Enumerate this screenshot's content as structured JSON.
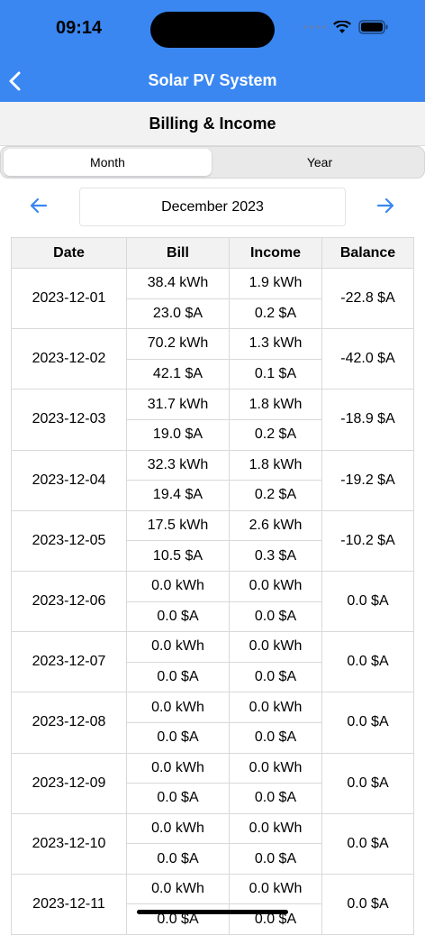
{
  "status": {
    "time": "09:14"
  },
  "header": {
    "title": "Solar PV System"
  },
  "subheader": {
    "title": "Billing & Income"
  },
  "tabs": [
    {
      "label": "Month",
      "selected": true
    },
    {
      "label": "Year",
      "selected": false
    }
  ],
  "period": {
    "label": "December 2023"
  },
  "table": {
    "columns": [
      "Date",
      "Bill",
      "Income",
      "Balance"
    ],
    "rows": [
      {
        "date": "2023-12-01",
        "bill_kwh": "38.4 kWh",
        "bill_cost": "23.0 $A",
        "income_kwh": "1.9 kWh",
        "income_cost": "0.2 $A",
        "balance": "-22.8 $A"
      },
      {
        "date": "2023-12-02",
        "bill_kwh": "70.2 kWh",
        "bill_cost": "42.1 $A",
        "income_kwh": "1.3 kWh",
        "income_cost": "0.1 $A",
        "balance": "-42.0 $A"
      },
      {
        "date": "2023-12-03",
        "bill_kwh": "31.7 kWh",
        "bill_cost": "19.0 $A",
        "income_kwh": "1.8 kWh",
        "income_cost": "0.2 $A",
        "balance": "-18.9 $A"
      },
      {
        "date": "2023-12-04",
        "bill_kwh": "32.3 kWh",
        "bill_cost": "19.4 $A",
        "income_kwh": "1.8 kWh",
        "income_cost": "0.2 $A",
        "balance": "-19.2 $A"
      },
      {
        "date": "2023-12-05",
        "bill_kwh": "17.5 kWh",
        "bill_cost": "10.5 $A",
        "income_kwh": "2.6 kWh",
        "income_cost": "0.3 $A",
        "balance": "-10.2 $A"
      },
      {
        "date": "2023-12-06",
        "bill_kwh": "0.0 kWh",
        "bill_cost": "0.0 $A",
        "income_kwh": "0.0 kWh",
        "income_cost": "0.0 $A",
        "balance": "0.0 $A"
      },
      {
        "date": "2023-12-07",
        "bill_kwh": "0.0 kWh",
        "bill_cost": "0.0 $A",
        "income_kwh": "0.0 kWh",
        "income_cost": "0.0 $A",
        "balance": "0.0 $A"
      },
      {
        "date": "2023-12-08",
        "bill_kwh": "0.0 kWh",
        "bill_cost": "0.0 $A",
        "income_kwh": "0.0 kWh",
        "income_cost": "0.0 $A",
        "balance": "0.0 $A"
      },
      {
        "date": "2023-12-09",
        "bill_kwh": "0.0 kWh",
        "bill_cost": "0.0 $A",
        "income_kwh": "0.0 kWh",
        "income_cost": "0.0 $A",
        "balance": "0.0 $A"
      },
      {
        "date": "2023-12-10",
        "bill_kwh": "0.0 kWh",
        "bill_cost": "0.0 $A",
        "income_kwh": "0.0 kWh",
        "income_cost": "0.0 $A",
        "balance": "0.0 $A"
      },
      {
        "date": "2023-12-11",
        "bill_kwh": "0.0 kWh",
        "bill_cost": "0.0 $A",
        "income_kwh": "0.0 kWh",
        "income_cost": "0.0 $A",
        "balance": "0.0 $A"
      }
    ]
  },
  "icons": {
    "back": "chevron-left-icon",
    "prev": "arrow-left-icon",
    "next": "arrow-right-icon",
    "wifi": "wifi-icon",
    "battery": "battery-icon"
  },
  "colors": {
    "header": "#3a87f2",
    "accent": "#3a87f2"
  }
}
